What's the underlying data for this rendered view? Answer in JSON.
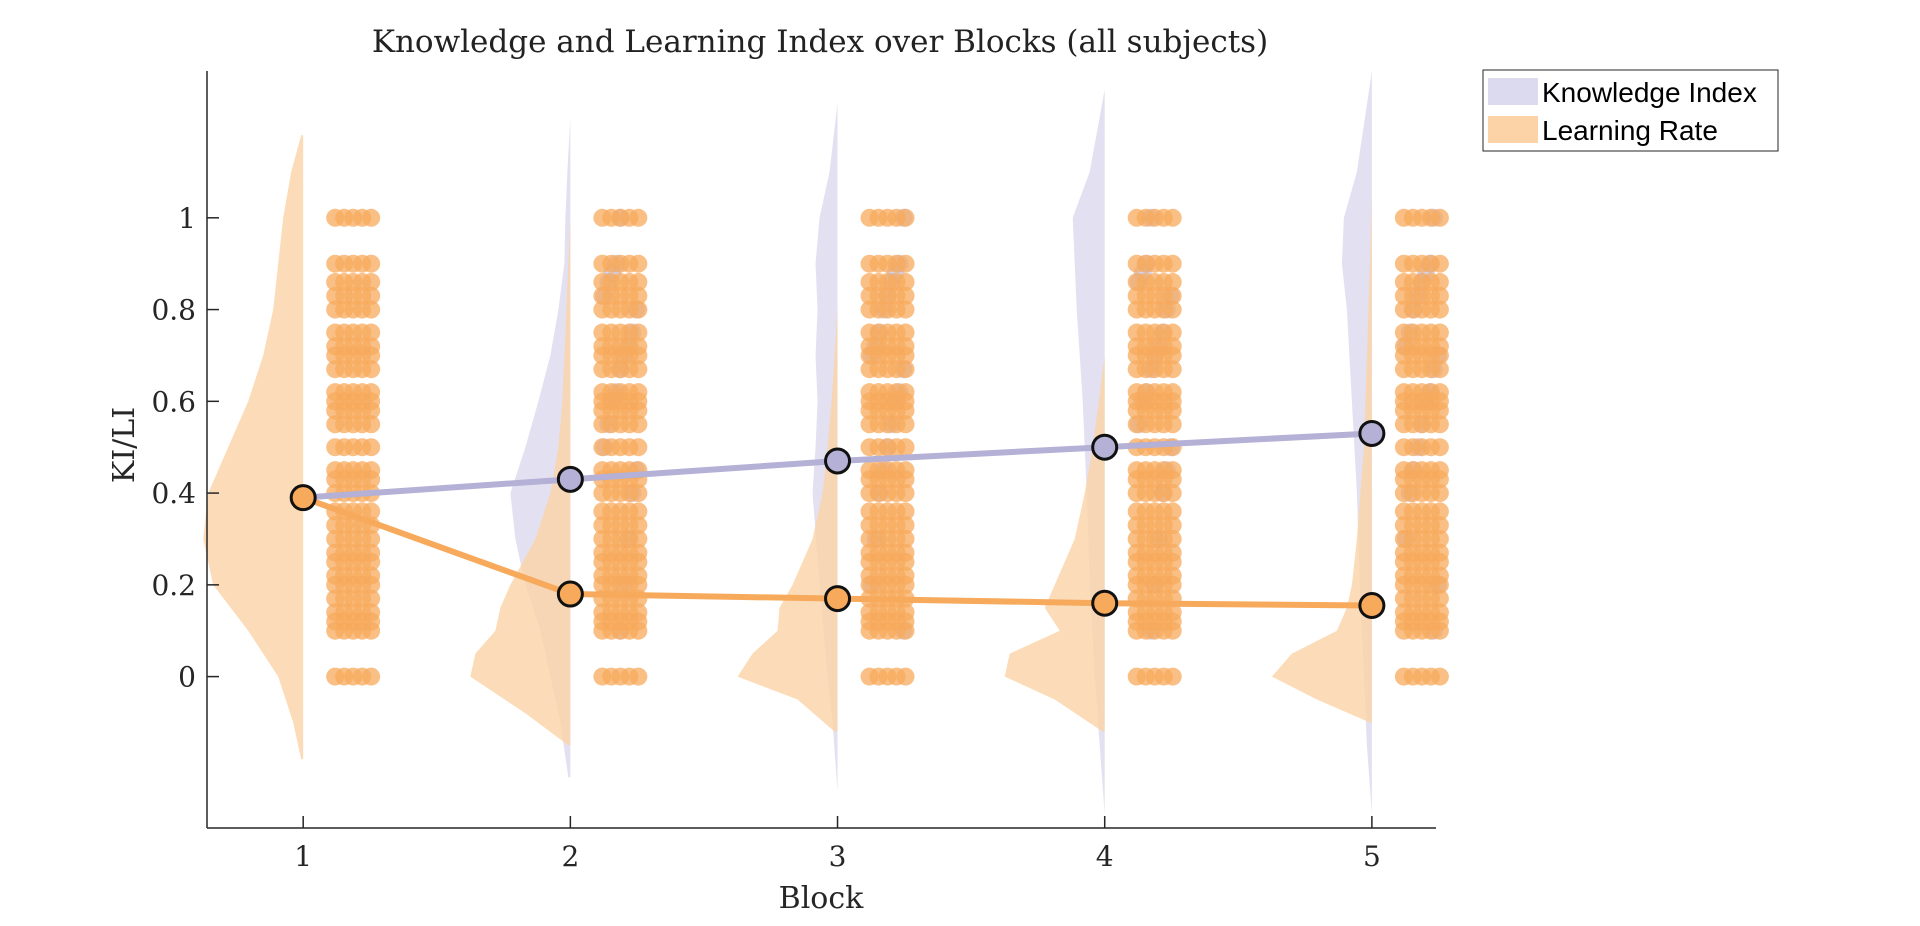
{
  "chart_data": {
    "type": "line",
    "title": "Knowledge and Learning Index over Blocks (all subjects)",
    "xlabel": "Block",
    "ylabel": "KI/LI",
    "x": [
      1,
      2,
      3,
      4,
      5
    ],
    "x_ticks": [
      "1",
      "2",
      "3",
      "4",
      "5"
    ],
    "y_ticks": [
      "0",
      "0.2",
      "0.4",
      "0.6",
      "0.8",
      "1"
    ],
    "xlim": [
      0.64,
      5.24
    ],
    "ylim": [
      -0.33,
      1.32
    ],
    "grid": false,
    "legend_position": "top-right, outside plot",
    "series": [
      {
        "name": "Knowledge Index",
        "color": "#b4b0d6",
        "fill_color": "#dcdaee",
        "values": [
          0.39,
          0.43,
          0.47,
          0.5,
          0.53
        ]
      },
      {
        "name": "Learning Rate",
        "color": "#f7aa5c",
        "fill_color": "#fbd3a6",
        "values": [
          0.39,
          0.18,
          0.17,
          0.16,
          0.155
        ]
      }
    ],
    "distributions": [
      {
        "block": 1,
        "knowledge_index": {
          "y": [],
          "density": []
        },
        "learning_rate": {
          "y": [
            -0.18,
            -0.1,
            0,
            0.1,
            0.2,
            0.3,
            0.4,
            0.5,
            0.6,
            0.7,
            0.8,
            0.9,
            1.0,
            1.1,
            1.18
          ],
          "density": [
            0.02,
            0.1,
            0.25,
            0.55,
            0.9,
            1.0,
            0.95,
            0.75,
            0.55,
            0.4,
            0.3,
            0.25,
            0.2,
            0.12,
            0.02
          ]
        }
      },
      {
        "block": 2,
        "knowledge_index": {
          "y": [
            -0.22,
            -0.1,
            0.1,
            0.2,
            0.3,
            0.4,
            0.5,
            0.6,
            0.7,
            0.8,
            0.9,
            1.0,
            1.1,
            1.22
          ],
          "density": [
            0.02,
            0.1,
            0.3,
            0.45,
            0.55,
            0.6,
            0.45,
            0.32,
            0.2,
            0.12,
            0.06,
            0.05,
            0.03,
            0.0
          ]
        },
        "learning_rate": {
          "y": [
            -0.15,
            -0.08,
            0.0,
            0.05,
            0.1,
            0.15,
            0.2,
            0.3,
            0.4,
            0.5,
            0.6,
            0.75,
            0.9,
            1.0
          ],
          "density": [
            0.02,
            0.45,
            1.0,
            0.95,
            0.75,
            0.7,
            0.6,
            0.35,
            0.2,
            0.12,
            0.08,
            0.05,
            0.02,
            0.0
          ]
        }
      },
      {
        "block": 3,
        "knowledge_index": {
          "y": [
            -0.25,
            -0.1,
            0.0,
            0.2,
            0.4,
            0.5,
            0.6,
            0.7,
            0.8,
            0.9,
            1.0,
            1.1,
            1.25
          ],
          "density": [
            0.0,
            0.05,
            0.1,
            0.18,
            0.25,
            0.22,
            0.2,
            0.22,
            0.2,
            0.22,
            0.18,
            0.08,
            0.0
          ]
        },
        "learning_rate": {
          "y": [
            -0.12,
            -0.05,
            0.0,
            0.05,
            0.1,
            0.15,
            0.2,
            0.3,
            0.4,
            0.5,
            0.6,
            0.7,
            0.8
          ],
          "density": [
            0.03,
            0.4,
            1.0,
            0.85,
            0.6,
            0.58,
            0.45,
            0.25,
            0.15,
            0.1,
            0.06,
            0.03,
            0.0
          ]
        }
      },
      {
        "block": 4,
        "knowledge_index": {
          "y": [
            -0.3,
            -0.15,
            0.0,
            0.2,
            0.4,
            0.6,
            0.8,
            0.9,
            1.0,
            1.1,
            1.28
          ],
          "density": [
            0.0,
            0.05,
            0.1,
            0.15,
            0.18,
            0.22,
            0.28,
            0.3,
            0.32,
            0.15,
            0.0
          ]
        },
        "learning_rate": {
          "y": [
            -0.12,
            -0.05,
            0.0,
            0.05,
            0.1,
            0.15,
            0.2,
            0.3,
            0.4,
            0.5,
            0.6,
            0.7
          ],
          "density": [
            0.02,
            0.5,
            1.0,
            0.95,
            0.45,
            0.6,
            0.5,
            0.3,
            0.2,
            0.12,
            0.06,
            0.0
          ]
        }
      },
      {
        "block": 5,
        "knowledge_index": {
          "y": [
            -0.3,
            -0.15,
            0.0,
            0.2,
            0.4,
            0.6,
            0.8,
            0.9,
            1.0,
            1.1,
            1.32
          ],
          "density": [
            0.0,
            0.05,
            0.08,
            0.12,
            0.15,
            0.2,
            0.25,
            0.3,
            0.28,
            0.15,
            0.0
          ]
        },
        "learning_rate": {
          "y": [
            -0.1,
            -0.05,
            0.0,
            0.05,
            0.1,
            0.15,
            0.2,
            0.3,
            0.5,
            0.7,
            0.9,
            1.05
          ],
          "density": [
            0.02,
            0.55,
            1.0,
            0.8,
            0.35,
            0.25,
            0.2,
            0.15,
            0.08,
            0.05,
            0.02,
            0.0
          ]
        }
      }
    ],
    "raw_levels": {
      "learning_rate": [
        0,
        0.1,
        0.12,
        0.14,
        0.17,
        0.2,
        0.22,
        0.25,
        0.27,
        0.3,
        0.33,
        0.36,
        0.4,
        0.43,
        0.45,
        0.5,
        0.55,
        0.58,
        0.6,
        0.62,
        0.67,
        0.7,
        0.72,
        0.75,
        0.8,
        0.83,
        0.86,
        0.9,
        1.0
      ],
      "knowledge_index": [
        0.1,
        0.2,
        0.3,
        0.4,
        0.45,
        0.5,
        0.55,
        0.6,
        0.62,
        0.67,
        0.7,
        0.72,
        0.75,
        0.8,
        0.83,
        0.86,
        0.88,
        0.9,
        1.0
      ]
    }
  }
}
